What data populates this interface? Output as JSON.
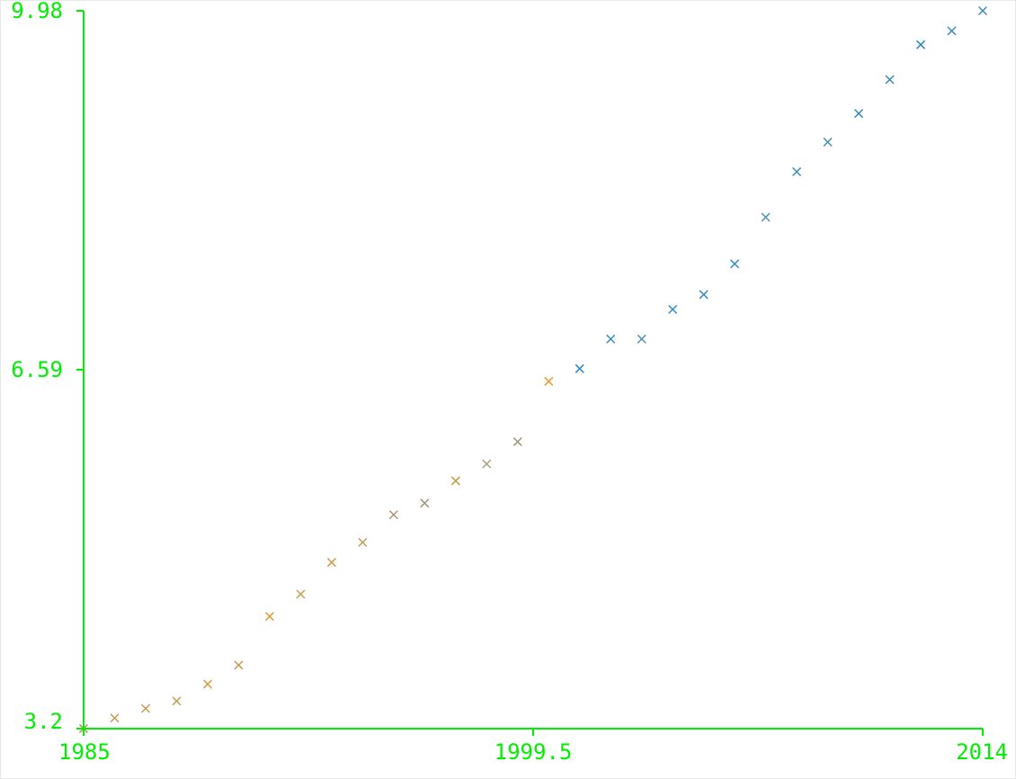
{
  "chart_data": {
    "type": "scatter",
    "title": "",
    "xlabel": "",
    "ylabel": "",
    "xlim": [
      1985,
      2014
    ],
    "ylim": [
      3.2,
      9.98
    ],
    "x_ticks": [
      {
        "value": 1985,
        "label": "1985"
      },
      {
        "value": 1999.5,
        "label": "1999.5"
      },
      {
        "value": 2014,
        "label": "2014"
      }
    ],
    "y_ticks": [
      {
        "value": 3.2,
        "label": "3.2"
      },
      {
        "value": 6.59,
        "label": "6.59"
      },
      {
        "value": 9.98,
        "label": "9.98"
      }
    ],
    "grid": false,
    "marker": "x",
    "axis_color": "#00ee00",
    "x": [
      1985,
      1986,
      1987,
      1988,
      1989,
      1990,
      1991,
      1992,
      1993,
      1994,
      1995,
      1996,
      1997,
      1998,
      1999,
      2000,
      2001,
      2002,
      2003,
      2004,
      2005,
      2006,
      2007,
      2008,
      2009,
      2010,
      2011,
      2012,
      2013,
      2014
    ],
    "y": [
      3.2,
      3.3,
      3.39,
      3.46,
      3.62,
      3.8,
      4.26,
      4.47,
      4.77,
      4.96,
      5.22,
      5.33,
      5.54,
      5.7,
      5.91,
      6.48,
      6.6,
      6.88,
      6.88,
      7.16,
      7.3,
      7.59,
      8.03,
      8.46,
      8.74,
      9.01,
      9.33,
      9.66,
      9.79,
      9.98
    ],
    "colors": [
      "#b08a58",
      "#c99850",
      "#cc9a4e",
      "#c79a52",
      "#d49a40",
      "#c99450",
      "#dc9a30",
      "#c99a50",
      "#d09a44",
      "#c09c58",
      "#a89468",
      "#a09870",
      "#c8983e",
      "#a8a070",
      "#a09870",
      "#e09a30",
      "#2a8ac8",
      "#3a8ab8",
      "#4a90b0",
      "#3a8cc0",
      "#3a8cc0",
      "#3a8cc0",
      "#4a90b0",
      "#3a8cc0",
      "#4a90b0",
      "#3a8ab8",
      "#3a8ab8",
      "#2a8ab8",
      "#3a8cb8",
      "#3a8cb8"
    ]
  }
}
